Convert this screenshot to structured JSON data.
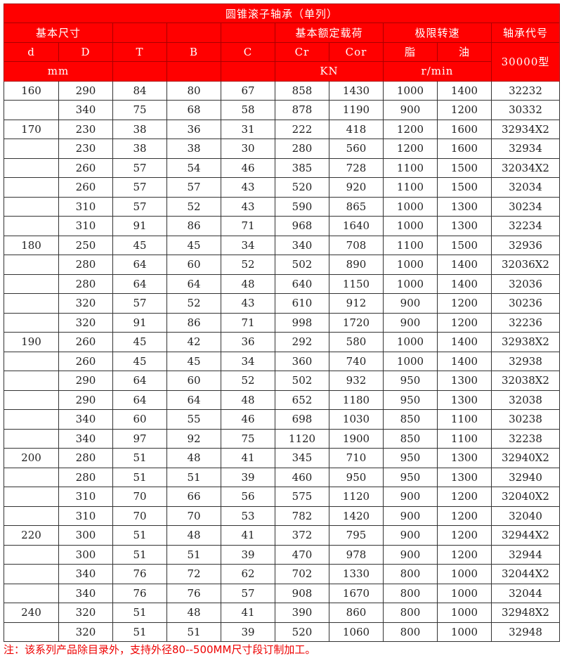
{
  "title": "圆锥滚子轴承（单列）",
  "header": {
    "basic_size": "基本尺寸",
    "basic_load": "基本额定载荷",
    "speed_limit": "极限转速",
    "bearing_code": "轴承代号",
    "d": "d",
    "D": "D",
    "T": "T",
    "B": "B",
    "C": "C",
    "Cr": "Cr",
    "Cor": "Cor",
    "grease": "脂",
    "oil": "油",
    "series": "30000型",
    "unit_mm": "mm",
    "unit_kn": "KN",
    "unit_rpm": "r/min"
  },
  "rows": [
    [
      "160",
      "290",
      "84",
      "80",
      "67",
      "858",
      "1430",
      "1000",
      "1400",
      "32232"
    ],
    [
      "",
      "340",
      "75",
      "68",
      "58",
      "878",
      "1190",
      "900",
      "1200",
      "30332"
    ],
    [
      "170",
      "230",
      "38",
      "36",
      "31",
      "222",
      "418",
      "1200",
      "1600",
      "32934X2"
    ],
    [
      "",
      "230",
      "38",
      "38",
      "30",
      "280",
      "560",
      "1200",
      "1600",
      "32934"
    ],
    [
      "",
      "260",
      "57",
      "54",
      "46",
      "385",
      "728",
      "1100",
      "1500",
      "32034X2"
    ],
    [
      "",
      "260",
      "57",
      "57",
      "43",
      "520",
      "920",
      "1100",
      "1500",
      "32034"
    ],
    [
      "",
      "310",
      "57",
      "52",
      "43",
      "590",
      "865",
      "1000",
      "1300",
      "30234"
    ],
    [
      "",
      "310",
      "91",
      "86",
      "71",
      "968",
      "1640",
      "1000",
      "1300",
      "32234"
    ],
    [
      "180",
      "250",
      "45",
      "45",
      "34",
      "340",
      "708",
      "1100",
      "1500",
      "32936"
    ],
    [
      "",
      "280",
      "64",
      "60",
      "52",
      "502",
      "890",
      "1000",
      "1400",
      "32036X2"
    ],
    [
      "",
      "280",
      "64",
      "64",
      "48",
      "640",
      "1150",
      "1000",
      "1400",
      "32036"
    ],
    [
      "",
      "320",
      "57",
      "52",
      "43",
      "610",
      "912",
      "900",
      "1200",
      "30236"
    ],
    [
      "",
      "320",
      "91",
      "86",
      "71",
      "998",
      "1720",
      "900",
      "1200",
      "32236"
    ],
    [
      "190",
      "260",
      "45",
      "42",
      "36",
      "292",
      "580",
      "1000",
      "1400",
      "32938X2"
    ],
    [
      "",
      "260",
      "45",
      "45",
      "34",
      "360",
      "740",
      "1000",
      "1400",
      "32938"
    ],
    [
      "",
      "290",
      "64",
      "60",
      "52",
      "502",
      "932",
      "950",
      "1300",
      "32038X2"
    ],
    [
      "",
      "290",
      "64",
      "64",
      "48",
      "652",
      "1180",
      "950",
      "1300",
      "32038"
    ],
    [
      "",
      "340",
      "60",
      "55",
      "46",
      "698",
      "1030",
      "850",
      "1100",
      "30238"
    ],
    [
      "",
      "340",
      "97",
      "92",
      "75",
      "1120",
      "1900",
      "850",
      "1100",
      "32238"
    ],
    [
      "200",
      "280",
      "51",
      "48",
      "41",
      "345",
      "710",
      "950",
      "1300",
      "32940X2"
    ],
    [
      "",
      "280",
      "51",
      "51",
      "39",
      "460",
      "950",
      "950",
      "1300",
      "32940"
    ],
    [
      "",
      "310",
      "70",
      "66",
      "56",
      "575",
      "1120",
      "900",
      "1200",
      "32040X2"
    ],
    [
      "",
      "310",
      "70",
      "70",
      "53",
      "782",
      "1420",
      "900",
      "1200",
      "32040"
    ],
    [
      "220",
      "300",
      "51",
      "48",
      "41",
      "372",
      "795",
      "900",
      "1200",
      "32944X2"
    ],
    [
      "",
      "300",
      "51",
      "51",
      "39",
      "470",
      "978",
      "900",
      "1200",
      "32944"
    ],
    [
      "",
      "340",
      "76",
      "72",
      "62",
      "702",
      "1330",
      "800",
      "1000",
      "32044X2"
    ],
    [
      "",
      "340",
      "76",
      "76",
      "57",
      "908",
      "1670",
      "800",
      "1000",
      "32044"
    ],
    [
      "240",
      "320",
      "51",
      "48",
      "41",
      "390",
      "860",
      "800",
      "1000",
      "32948X2"
    ],
    [
      "",
      "320",
      "51",
      "51",
      "39",
      "520",
      "1060",
      "800",
      "1000",
      "32948"
    ]
  ],
  "note": "注：该系列产品除目录外，支持外径80--500MM尺寸段订制加工。"
}
